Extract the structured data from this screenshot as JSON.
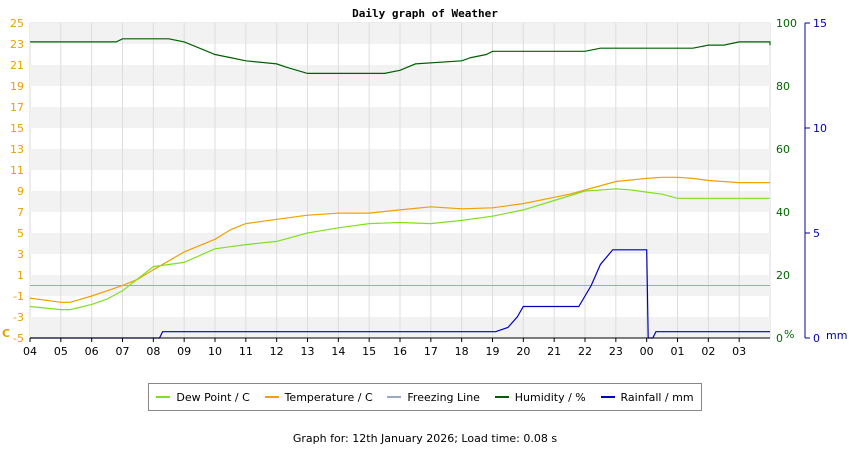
{
  "chart_data": {
    "type": "line",
    "title": "Daily graph of Weather",
    "x_ticks": [
      "04",
      "05",
      "06",
      "07",
      "08",
      "09",
      "10",
      "11",
      "12",
      "13",
      "14",
      "15",
      "16",
      "17",
      "18",
      "19",
      "20",
      "21",
      "22",
      "23",
      "00",
      "01",
      "02",
      "03"
    ],
    "y_left": {
      "unit": "C",
      "min": -5,
      "max": 25,
      "ticks": [
        -5,
        -3,
        -1,
        1,
        3,
        5,
        7,
        9,
        11,
        13,
        15,
        17,
        19,
        21,
        23,
        25
      ],
      "color": "#e8a000"
    },
    "y_humidity": {
      "unit": "%",
      "min": 0,
      "max": 100,
      "ticks": [
        0,
        20,
        40,
        60,
        80,
        100
      ],
      "color": "#006600"
    },
    "y_rain": {
      "unit": "mm",
      "min": 0,
      "max": 15,
      "ticks": [
        0,
        5,
        10,
        15
      ],
      "color": "#0000aa"
    },
    "series": [
      {
        "name": "Dew Point / C",
        "color": "#80e020",
        "axis": "temp",
        "x": [
          0,
          1,
          1.3,
          2,
          2.5,
          3,
          4,
          5,
          6,
          6.5,
          7,
          8,
          9,
          10,
          11,
          12,
          13,
          14,
          15,
          16,
          17,
          18,
          18.5,
          19,
          19.5,
          20,
          20.5,
          21,
          22,
          23,
          24
        ],
        "y": [
          -2,
          -2.3,
          -2.3,
          -1.8,
          -1.3,
          -0.5,
          1.8,
          2.2,
          3.5,
          3.7,
          3.9,
          4.2,
          5,
          5.5,
          5.9,
          6,
          5.9,
          6.2,
          6.6,
          7.2,
          8.1,
          9,
          9.1,
          9.2,
          9.1,
          8.9,
          8.7,
          8.3,
          8.3,
          8.3,
          8.3
        ]
      },
      {
        "name": "Temperature / C",
        "color": "#f0a000",
        "axis": "temp",
        "x": [
          0,
          1,
          1.3,
          2,
          2.5,
          3,
          3.5,
          4,
          5,
          5.5,
          6,
          6.5,
          7,
          8,
          9,
          10,
          11,
          12,
          13,
          14,
          15,
          16,
          17,
          17.5,
          18,
          19,
          20,
          20.5,
          21,
          21.5,
          22,
          23,
          24
        ],
        "y": [
          -1.2,
          -1.6,
          -1.6,
          -1,
          -0.5,
          0,
          0.6,
          1.5,
          3.2,
          3.8,
          4.4,
          5.3,
          5.9,
          6.3,
          6.7,
          6.9,
          6.9,
          7.2,
          7.5,
          7.3,
          7.4,
          7.8,
          8.4,
          8.7,
          9.1,
          9.9,
          10.2,
          10.3,
          10.3,
          10.2,
          10,
          9.8,
          9.8
        ]
      },
      {
        "name": "Freezing Line",
        "color": "#99aac8",
        "axis": "temp",
        "x": [
          0,
          24
        ],
        "y": [
          0,
          0
        ]
      },
      {
        "name": "Humidity / %",
        "color": "#006000",
        "axis": "humidity",
        "x": [
          0,
          2.8,
          3,
          3.2,
          4.5,
          5,
          5.5,
          6,
          6.5,
          7,
          8,
          8.3,
          9,
          10,
          10.5,
          11,
          11.5,
          12,
          12.5,
          14,
          14.3,
          14.8,
          15,
          16,
          16.5,
          17,
          18,
          18.5,
          19,
          21,
          21.5,
          22,
          22.5,
          23,
          24,
          24.2,
          25,
          26
        ],
        "y": [
          94,
          94,
          95,
          95,
          95,
          94,
          92,
          90,
          89,
          88,
          87,
          86,
          84,
          84,
          84,
          84,
          84,
          85,
          87,
          88,
          89,
          90,
          91,
          91,
          91,
          91,
          91,
          92,
          92,
          92,
          92,
          93,
          93,
          94,
          94,
          94,
          93,
          93
        ]
      },
      {
        "name": "Rainfall / mm",
        "color": "#0000c0",
        "axis": "rain",
        "x": [
          0,
          4.2,
          4.3,
          15.1,
          15.5,
          15.8,
          16,
          16.5,
          17.4,
          17.8,
          18.2,
          18.5,
          18.9,
          19,
          20,
          20.05,
          20.2,
          20.3,
          24
        ],
        "y": [
          0,
          0,
          0.3,
          0.3,
          0.5,
          1,
          1.5,
          1.5,
          1.5,
          1.5,
          2.5,
          3.5,
          4.2,
          4.2,
          4.2,
          0,
          0,
          0.3,
          0.3
        ]
      }
    ]
  },
  "legend": {
    "dew": "Dew Point / C",
    "temp": "Temperature / C",
    "freeze": "Freezing Line",
    "hum": "Humidity / %",
    "rain": "Rainfall / mm"
  },
  "footer": "Graph for: 12th January 2026; Load time: 0.08 s"
}
